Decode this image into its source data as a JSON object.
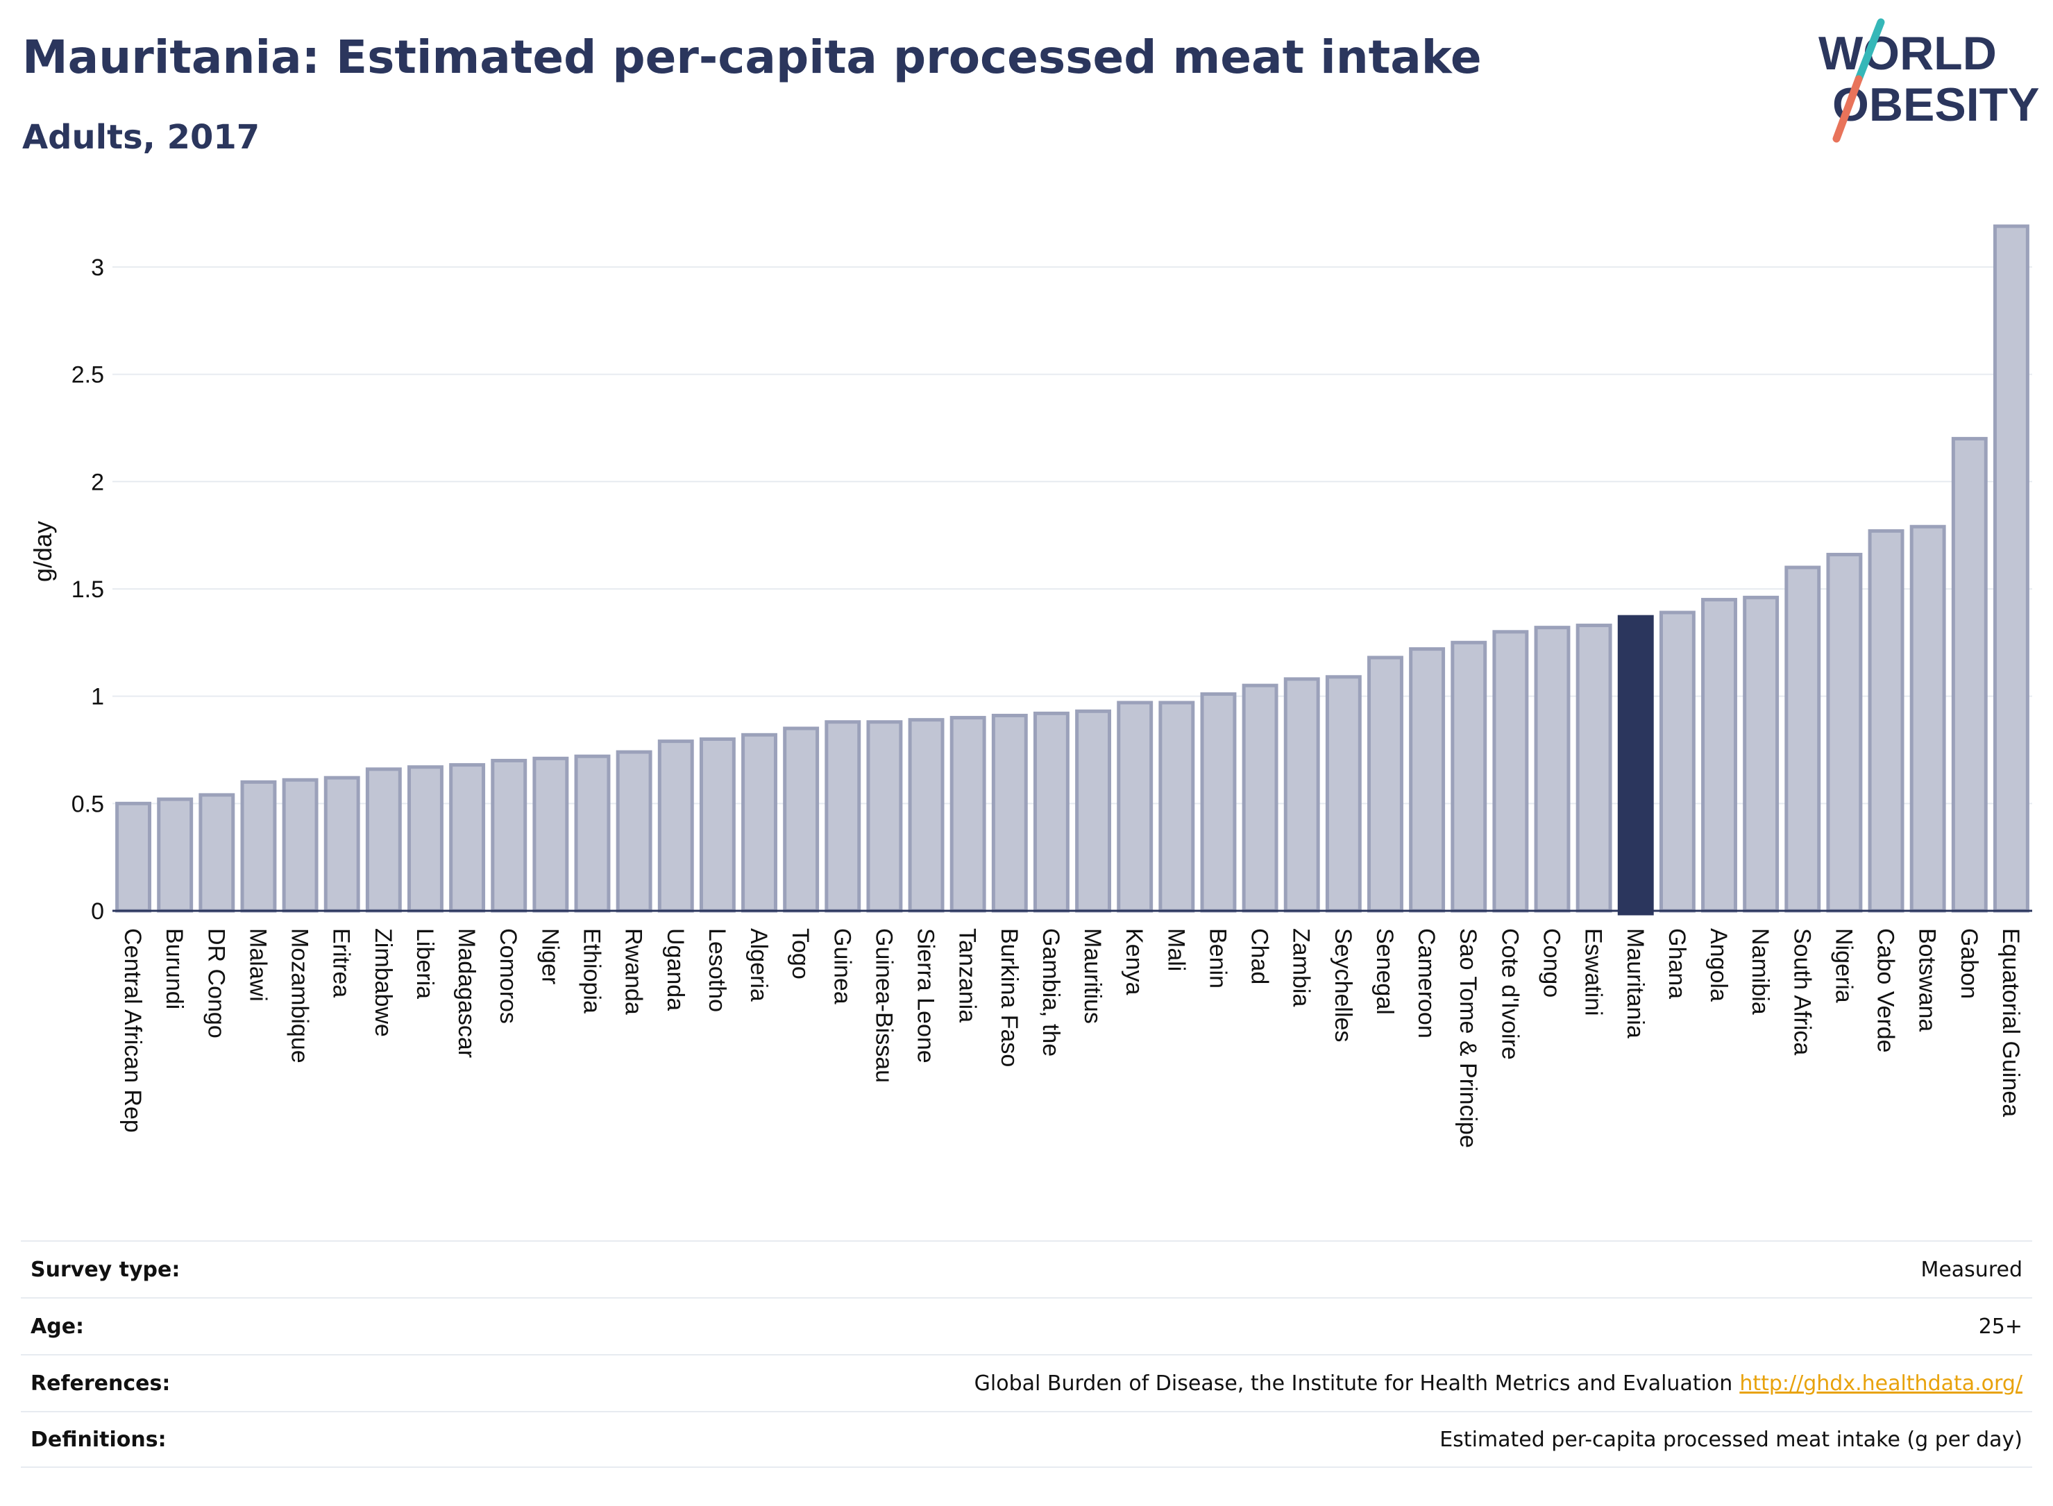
{
  "header": {
    "title": "Mauritania: Estimated per-capita processed meat intake",
    "subtitle": "Adults, 2017"
  },
  "logo": {
    "line1": "WORLD",
    "line2": "OBESITY",
    "colors": {
      "text": "#2b365d",
      "slash_top": "#35b7b8",
      "slash_bottom": "#e8735a"
    }
  },
  "chart_data": {
    "type": "bar",
    "ylabel": "g/day",
    "ylim": [
      0,
      3.2
    ],
    "yticks": [
      0,
      0.5,
      1,
      1.5,
      2,
      2.5,
      3
    ],
    "grid": true,
    "highlight": "Mauritania",
    "colors": {
      "bar": "#c1c5d4",
      "bar_edge": "#9ba1ba",
      "highlight": "#2b365d"
    },
    "categories": [
      "Central African Rep",
      "Burundi",
      "DR Congo",
      "Malawi",
      "Mozambique",
      "Eritrea",
      "Zimbabwe",
      "Liberia",
      "Madagascar",
      "Comoros",
      "Niger",
      "Ethiopia",
      "Rwanda",
      "Uganda",
      "Lesotho",
      "Algeria",
      "Togo",
      "Guinea",
      "Guinea-Bissau",
      "Sierra Leone",
      "Tanzania",
      "Burkina Faso",
      "Gambia, the",
      "Mauritius",
      "Kenya",
      "Mali",
      "Benin",
      "Chad",
      "Zambia",
      "Seychelles",
      "Senegal",
      "Cameroon",
      "Sao Tome & Principe",
      "Cote d'Ivoire",
      "Congo",
      "Eswatini",
      "Mauritania",
      "Ghana",
      "Angola",
      "Namibia",
      "South Africa",
      "Nigeria",
      "Cabo Verde",
      "Botswana",
      "Gabon",
      "Equatorial Guinea"
    ],
    "values": [
      0.5,
      0.52,
      0.54,
      0.6,
      0.61,
      0.62,
      0.66,
      0.67,
      0.68,
      0.7,
      0.71,
      0.72,
      0.74,
      0.79,
      0.8,
      0.82,
      0.85,
      0.88,
      0.88,
      0.89,
      0.9,
      0.91,
      0.92,
      0.93,
      0.97,
      0.97,
      1.01,
      1.05,
      1.08,
      1.09,
      1.18,
      1.22,
      1.25,
      1.3,
      1.32,
      1.33,
      1.37,
      1.39,
      1.45,
      1.46,
      1.6,
      1.66,
      1.77,
      1.79,
      2.2,
      3.19
    ]
  },
  "meta": {
    "survey_type": {
      "label": "Survey type:",
      "value": "Measured"
    },
    "age": {
      "label": "Age:",
      "value": "25+"
    },
    "references": {
      "label": "References:",
      "value": "Global Burden of Disease, the Institute for Health Metrics and Evaluation",
      "link": "http://ghdx.healthdata.org/"
    },
    "definitions": {
      "label": "Definitions:",
      "value": "Estimated per-capita processed meat intake (g per day)"
    }
  }
}
